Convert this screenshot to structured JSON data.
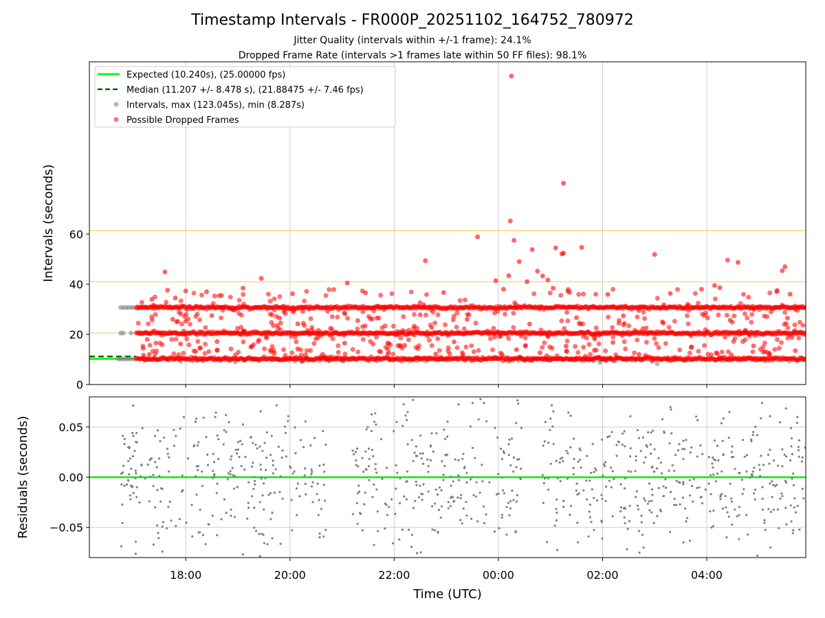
{
  "chart_data": [
    {
      "type": "scatter",
      "panel": "intervals",
      "title": "Timestamp Intervals - FR000P_20251102_164752_780972",
      "subtitle1": "Jitter Quality (intervals within +/-1 frame): 24.1%",
      "subtitle2": "Dropped Frame Rate (intervals >1 frames late within 50 FF files): 98.1%",
      "ylabel": "Intervals (seconds)",
      "xlim": [
        16.15,
        29.9
      ],
      "ylim": [
        0,
        128.7
      ],
      "yticks": [
        0,
        20,
        40,
        60
      ],
      "ytick_labels": [
        "0",
        "20",
        "40",
        "60"
      ],
      "xticks": [
        18,
        20,
        22,
        24,
        26,
        28
      ],
      "reference_lines": [
        20.48,
        40.96,
        61.44
      ],
      "reference_color": "#ffcc66",
      "expected_value": 10.24,
      "median_value": 11.207,
      "legend": {
        "expected": "Expected (10.240s), (25.00000 fps)",
        "median": "Median (11.207 +/- 8.478 s), (21.88475 +/- 7.46 fps)",
        "intervals": "Intervals, max (123.045s), min (8.287s)",
        "dropped": "Possible Dropped Frames"
      },
      "legend_position": "top-left",
      "colors": {
        "expected": "#00ee00",
        "median": "#006400",
        "intervals": "#808080",
        "dropped": "#ff0000"
      },
      "gray_points": [
        {
          "x": 16.75,
          "y": 30.7
        },
        {
          "x": 16.8,
          "y": 30.7
        },
        {
          "x": 16.85,
          "y": 30.7
        },
        {
          "x": 16.9,
          "y": 30.7
        },
        {
          "x": 16.95,
          "y": 30.7
        },
        {
          "x": 17.0,
          "y": 30.7
        },
        {
          "x": 16.75,
          "y": 20.5
        },
        {
          "x": 16.8,
          "y": 20.5
        },
        {
          "x": 16.95,
          "y": 20.5
        },
        {
          "x": 16.7,
          "y": 10.2
        },
        {
          "x": 16.75,
          "y": 10.2
        },
        {
          "x": 16.8,
          "y": 10.2
        },
        {
          "x": 16.85,
          "y": 10.2
        },
        {
          "x": 16.9,
          "y": 10.2
        },
        {
          "x": 16.95,
          "y": 10.2
        },
        {
          "x": 17.0,
          "y": 10.2
        },
        {
          "x": 17.9,
          "y": 9.2
        },
        {
          "x": 18.95,
          "y": 9.0
        },
        {
          "x": 19.4,
          "y": 9.5
        },
        {
          "x": 20.1,
          "y": 9.3
        },
        {
          "x": 21.0,
          "y": 9.4
        },
        {
          "x": 22.3,
          "y": 9.3
        },
        {
          "x": 24.2,
          "y": 9.2
        },
        {
          "x": 25.0,
          "y": 9.6
        },
        {
          "x": 25.95,
          "y": 8.8
        },
        {
          "x": 27.05,
          "y": 8.3
        },
        {
          "x": 28.3,
          "y": 9.5
        },
        {
          "x": 29.1,
          "y": 9.4
        }
      ],
      "dropped_band_levels": [
        10.24,
        20.48,
        30.72
      ],
      "dropped_band_range": [
        17.05,
        29.9
      ],
      "dropped_outliers": [
        {
          "x": 24.25,
          "y": 123.0
        },
        {
          "x": 25.25,
          "y": 80.3
        },
        {
          "x": 24.23,
          "y": 65.2
        },
        {
          "x": 24.3,
          "y": 57.5
        },
        {
          "x": 23.6,
          "y": 58.9
        },
        {
          "x": 25.6,
          "y": 54.7
        },
        {
          "x": 25.1,
          "y": 54.5
        },
        {
          "x": 24.65,
          "y": 53.8
        },
        {
          "x": 25.25,
          "y": 52.4
        },
        {
          "x": 25.22,
          "y": 52.1
        },
        {
          "x": 27.0,
          "y": 51.9
        },
        {
          "x": 28.4,
          "y": 49.6
        },
        {
          "x": 28.6,
          "y": 48.7
        },
        {
          "x": 22.6,
          "y": 49.4
        },
        {
          "x": 24.4,
          "y": 49.0
        },
        {
          "x": 29.5,
          "y": 47.0
        },
        {
          "x": 29.45,
          "y": 45.4
        },
        {
          "x": 24.75,
          "y": 45.2
        },
        {
          "x": 17.6,
          "y": 44.9
        },
        {
          "x": 24.85,
          "y": 43.3
        },
        {
          "x": 24.55,
          "y": 41.0
        },
        {
          "x": 24.95,
          "y": 41.7
        },
        {
          "x": 23.95,
          "y": 41.4
        },
        {
          "x": 21.1,
          "y": 40.5
        },
        {
          "x": 19.45,
          "y": 42.3
        },
        {
          "x": 24.2,
          "y": 43.4
        },
        {
          "x": 24.1,
          "y": 38.0
        },
        {
          "x": 17.65,
          "y": 37.6
        },
        {
          "x": 18.0,
          "y": 37.3
        },
        {
          "x": 18.4,
          "y": 37.0
        },
        {
          "x": 19.1,
          "y": 38.4
        },
        {
          "x": 20.05,
          "y": 36.2
        },
        {
          "x": 21.45,
          "y": 36.6
        },
        {
          "x": 22.95,
          "y": 36.7
        },
        {
          "x": 25.05,
          "y": 38.4
        },
        {
          "x": 26.1,
          "y": 35.9
        },
        {
          "x": 27.3,
          "y": 36.3
        },
        {
          "x": 28.15,
          "y": 39.5
        },
        {
          "x": 28.25,
          "y": 38.6
        },
        {
          "x": 29.35,
          "y": 37.5
        },
        {
          "x": 29.6,
          "y": 36.0
        },
        {
          "x": 17.35,
          "y": 34.0
        },
        {
          "x": 17.8,
          "y": 34.5
        },
        {
          "x": 27.9,
          "y": 38.0
        },
        {
          "x": 17.75,
          "y": 26.0
        },
        {
          "x": 18.0,
          "y": 25.3
        },
        {
          "x": 18.5,
          "y": 27.5
        },
        {
          "x": 19.8,
          "y": 26.5
        },
        {
          "x": 20.15,
          "y": 24.2
        },
        {
          "x": 21.3,
          "y": 25.5
        },
        {
          "x": 22.5,
          "y": 27.8
        },
        {
          "x": 23.4,
          "y": 26.0
        },
        {
          "x": 24.6,
          "y": 24.1
        },
        {
          "x": 25.5,
          "y": 26.7
        },
        {
          "x": 26.4,
          "y": 27.4
        },
        {
          "x": 27.15,
          "y": 25.0
        },
        {
          "x": 28.45,
          "y": 25.6
        },
        {
          "x": 29.55,
          "y": 26.5
        },
        {
          "x": 17.9,
          "y": 16.2
        },
        {
          "x": 18.6,
          "y": 17.1
        },
        {
          "x": 19.25,
          "y": 15.0
        },
        {
          "x": 20.15,
          "y": 14.2
        },
        {
          "x": 21.05,
          "y": 16.5
        },
        {
          "x": 22.2,
          "y": 15.6
        },
        {
          "x": 23.15,
          "y": 17.0
        },
        {
          "x": 24.35,
          "y": 13.9
        },
        {
          "x": 25.3,
          "y": 15.3
        },
        {
          "x": 26.2,
          "y": 16.8
        },
        {
          "x": 27.7,
          "y": 14.8
        },
        {
          "x": 28.9,
          "y": 15.4
        },
        {
          "x": 29.7,
          "y": 13.5
        },
        {
          "x": 17.3,
          "y": 12.0
        },
        {
          "x": 19.7,
          "y": 12.5
        },
        {
          "x": 20.3,
          "y": 11.8
        },
        {
          "x": 22.8,
          "y": 12.2
        },
        {
          "x": 24.8,
          "y": 12.7
        },
        {
          "x": 26.7,
          "y": 12.0
        },
        {
          "x": 28.2,
          "y": 12.4
        },
        {
          "x": 29.2,
          "y": 11.9
        }
      ]
    },
    {
      "type": "scatter",
      "panel": "residuals",
      "xlabel": "Time (UTC)",
      "ylabel": "Residuals (seconds)",
      "xlim": [
        16.15,
        29.9
      ],
      "ylim": [
        -0.08,
        0.08
      ],
      "yticks": [
        0.05,
        0.0,
        -0.05
      ],
      "ytick_labels": [
        "0.05",
        "0.00",
        "−0.05"
      ],
      "xticks": [
        18,
        20,
        22,
        24,
        26,
        28
      ],
      "xtick_labels": [
        "18:00",
        "20:00",
        "22:00",
        "00:00",
        "02:00",
        "04:00"
      ],
      "zero_line_color": "#00ee00",
      "point_color": "#808080",
      "point_segments": [
        [
          16.75,
          20.7
        ],
        [
          21.2,
          24.45
        ],
        [
          24.85,
          29.9
        ]
      ],
      "point_count": 900
    }
  ]
}
